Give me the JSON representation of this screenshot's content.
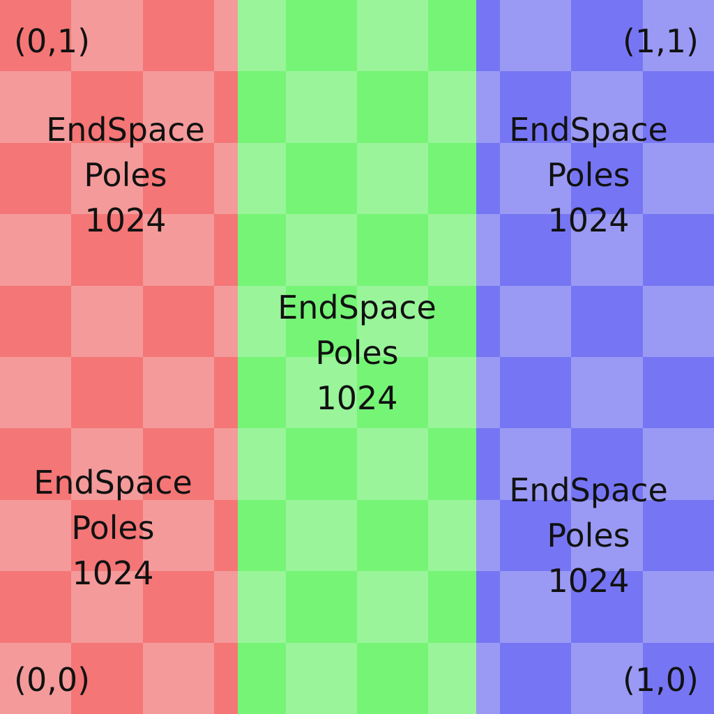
{
  "colors": {
    "red_light": "#f49a9a",
    "red_dark": "#f47676",
    "green_light": "#9af49a",
    "green_dark": "#76f476",
    "blue_light": "#9a9af4",
    "blue_dark": "#7676f4",
    "text": "#111111"
  },
  "corners": {
    "top_left": "(0,1)",
    "top_right": "(1,1)",
    "bottom_left": "(0,0)",
    "bottom_right": "(1,0)"
  },
  "labels": {
    "red_top": {
      "line1": "EndSpace",
      "line2": "Poles",
      "line3": "1024"
    },
    "red_bottom": {
      "line1": "EndSpace",
      "line2": "Poles",
      "line3": "1024"
    },
    "green_center": {
      "line1": "EndSpace",
      "line2": "Poles",
      "line3": "1024"
    },
    "blue_top": {
      "line1": "EndSpace",
      "line2": "Poles",
      "line3": "1024"
    },
    "blue_bottom": {
      "line1": "EndSpace",
      "line2": "Poles",
      "line3": "1024"
    }
  }
}
